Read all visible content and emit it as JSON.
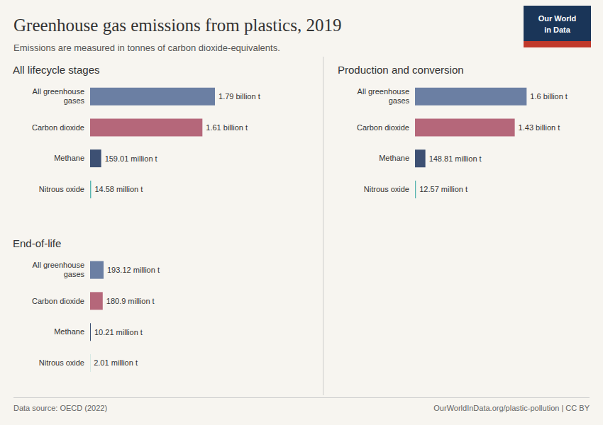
{
  "title": "Greenhouse gas emissions from plastics, 2019",
  "subtitle": "Emissions are measured in tonnes of carbon dioxide-equivalents.",
  "annotations": [
    "Data source: OECD (2022)",
    "OurWorldInData.org/plastic-pollution | CC BY",
    "Our World",
    "in Data"
  ],
  "chart_data": [
    {
      "type": "bar",
      "orientation": "horizontal",
      "title": "All lifecycle stages",
      "categories": [
        "All greenhouse\ngases",
        "Carbon dioxide",
        "Methane",
        "Nitrous oxide"
      ],
      "values": [
        1790,
        1610,
        159.01,
        14.58
      ],
      "value_labels": [
        "1.79 billion t",
        "1.61 billion t",
        "159.01 million t",
        "14.58 million t"
      ],
      "colors": [
        "#6b7fa3",
        "#b5677a",
        "#3d5073",
        "#5ab5b0"
      ],
      "xlim": [
        0,
        3000
      ],
      "data_labels": true,
      "tick_labels": "y",
      "grid": false
    },
    {
      "type": "bar",
      "orientation": "horizontal",
      "title": "Production and conversion",
      "categories": [
        "All greenhouse\ngases",
        "Carbon dioxide",
        "Methane",
        "Nitrous oxide"
      ],
      "values": [
        1600,
        1430,
        148.81,
        12.57
      ],
      "value_labels": [
        "1.6 billion t",
        "1.43 billion t",
        "148.81 million t",
        "12.57 million t"
      ],
      "colors": [
        "#6b7fa3",
        "#b5677a",
        "#3d5073",
        "#5ab5b0"
      ],
      "xlim": [
        0,
        3000
      ],
      "data_labels": true,
      "tick_labels": "y",
      "grid": false
    },
    {
      "type": "bar",
      "orientation": "horizontal",
      "title": "End-of-life",
      "categories": [
        "All greenhouse\ngases",
        "Carbon dioxide",
        "Methane",
        "Nitrous oxide"
      ],
      "values": [
        193.12,
        180.9,
        10.21,
        2.01
      ],
      "value_labels": [
        "193.12 million t",
        "180.9 million t",
        "10.21 million t",
        "2.01 million t"
      ],
      "colors": [
        "#6b7fa3",
        "#b5677a",
        "#3d5073",
        "#5ab5b0"
      ],
      "xlim": [
        0,
        3000
      ],
      "data_labels": true,
      "tick_labels": "y",
      "grid": false
    }
  ]
}
